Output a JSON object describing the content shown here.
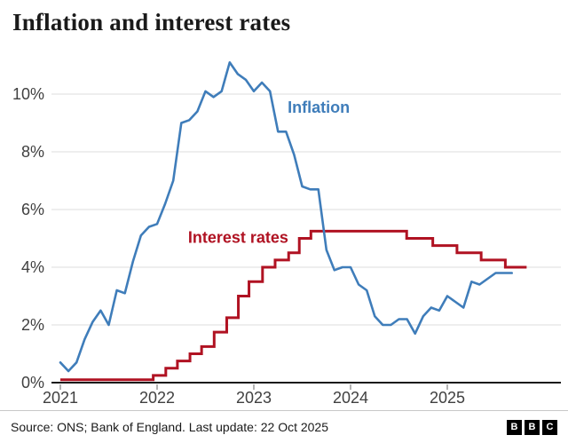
{
  "title": "Inflation and interest rates",
  "footer": {
    "source": "Source: ONS; Bank of England. Last update: 22 Oct 2025",
    "logo_letters": [
      "B",
      "B",
      "C"
    ]
  },
  "colors": {
    "inflation": "#3f7dba",
    "interest": "#b01222",
    "grid": "#e3e3e3",
    "axis": "#1a1a1a",
    "tick": "#8a8a8a",
    "text": "#404040"
  },
  "chart_data": {
    "type": "line",
    "title": "Inflation and interest rates",
    "xlabel": "",
    "ylabel": "",
    "ylim": [
      0,
      11.3
    ],
    "xlim": [
      2021,
      2026.1
    ],
    "grid": "horizontal",
    "legend_position": "inline-labels",
    "y_ticks": [
      0,
      2,
      4,
      6,
      8,
      10
    ],
    "y_tick_suffix": "%",
    "x_ticks": [
      2021,
      2022,
      2023,
      2024,
      2025
    ],
    "series": [
      {
        "name": "Inflation",
        "type": "line",
        "color_key": "inflation",
        "start_year": 2021,
        "interval_months": 1,
        "values": [
          0.7,
          0.4,
          0.7,
          1.5,
          2.1,
          2.5,
          2.0,
          3.2,
          3.1,
          4.2,
          5.1,
          5.4,
          5.5,
          6.2,
          7.0,
          9.0,
          9.1,
          9.4,
          10.1,
          9.9,
          10.1,
          11.1,
          10.7,
          10.5,
          10.1,
          10.4,
          10.1,
          8.7,
          8.7,
          7.9,
          6.8,
          6.7,
          6.7,
          4.6,
          3.9,
          4.0,
          4.0,
          3.4,
          3.2,
          2.3,
          2.0,
          2.0,
          2.2,
          2.2,
          1.7,
          2.3,
          2.6,
          2.5,
          3.0,
          2.8,
          2.6,
          3.5,
          3.4,
          3.6,
          3.8,
          3.8,
          3.8
        ]
      },
      {
        "name": "Interest rates",
        "type": "step",
        "color_key": "interest",
        "points": [
          [
            2021.0,
            0.1
          ],
          [
            2021.96,
            0.25
          ],
          [
            2022.09,
            0.5
          ],
          [
            2022.21,
            0.75
          ],
          [
            2022.34,
            1.0
          ],
          [
            2022.46,
            1.25
          ],
          [
            2022.59,
            1.75
          ],
          [
            2022.72,
            2.25
          ],
          [
            2022.84,
            3.0
          ],
          [
            2022.95,
            3.5
          ],
          [
            2023.09,
            4.0
          ],
          [
            2023.22,
            4.25
          ],
          [
            2023.36,
            4.5
          ],
          [
            2023.47,
            5.0
          ],
          [
            2023.59,
            5.25
          ],
          [
            2024.58,
            5.0
          ],
          [
            2024.85,
            4.75
          ],
          [
            2025.1,
            4.5
          ],
          [
            2025.35,
            4.25
          ],
          [
            2025.6,
            4.0
          ]
        ],
        "end_x": 2025.82
      }
    ],
    "labels": [
      {
        "text": "Inflation",
        "x": 2023.35,
        "y": 9.35,
        "color_key": "inflation"
      },
      {
        "text": "Interest rates",
        "x": 2022.32,
        "y": 4.85,
        "color_key": "interest"
      }
    ]
  }
}
